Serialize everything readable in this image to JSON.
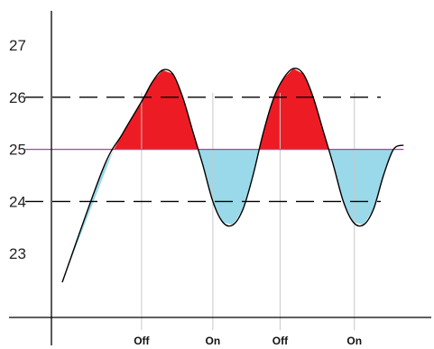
{
  "chart_data": {
    "type": "line",
    "title": "",
    "xlabel": "",
    "ylabel": "",
    "ylim": [
      22.0,
      28.2
    ],
    "y_ticks": [
      "23",
      "24",
      "25",
      "26",
      "27"
    ],
    "y_tick_values": [
      23,
      24,
      25,
      26,
      27
    ],
    "grid": false,
    "setpoint": 25,
    "thresholds": [
      26,
      24
    ],
    "x": [
      0.0,
      2.0,
      3.0,
      4.0,
      4.5,
      5.0,
      5.5,
      6.0,
      6.5,
      7.0,
      7.5,
      8.0,
      8.5,
      9.0,
      9.5,
      10.0,
      10.5,
      11.0,
      11.5,
      12.0,
      12.5,
      13.0,
      13.5,
      14.0,
      14.5,
      15.0,
      15.5,
      16.0,
      16.5,
      17.0
    ],
    "series": [
      {
        "values": [
          22.45,
          24.6,
          25.3,
          25.95,
          26.3,
          26.52,
          26.45,
          26.0,
          25.35,
          24.7,
          24.0,
          23.6,
          23.55,
          23.85,
          24.5,
          25.3,
          25.95,
          26.35,
          26.55,
          26.45,
          26.0,
          25.35,
          24.7,
          24.0,
          23.6,
          23.55,
          23.85,
          24.5,
          25.0,
          25.08
        ]
      }
    ],
    "fill_above_color": "#ed1c24",
    "fill_below_color": "#99d9ea",
    "line_color": "#000000",
    "setpoint_color": "#a349a4",
    "threshold_color": "#000000",
    "vline_color": "#c8c8c8",
    "state_markers": [
      {
        "label": "Off",
        "x": 3.95
      },
      {
        "label": "On",
        "x": 7.5
      },
      {
        "label": "Off",
        "x": 10.85
      },
      {
        "label": "On",
        "x": 14.55
      }
    ]
  }
}
